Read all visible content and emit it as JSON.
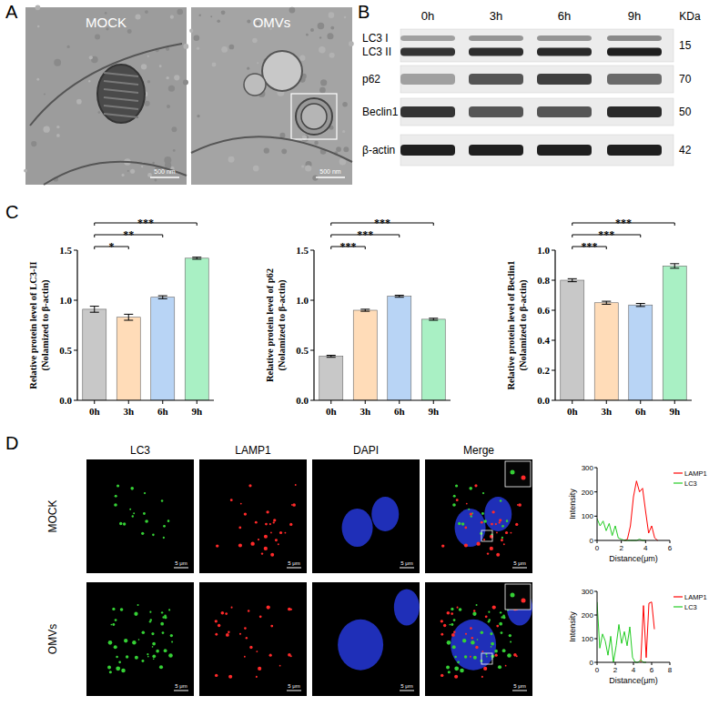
{
  "panels": {
    "A": {
      "letter": "A",
      "images": [
        {
          "label": "MOCK",
          "scale_bar": "500 nm"
        },
        {
          "label": "OMVs",
          "scale_bar": "500 nm"
        }
      ]
    },
    "B": {
      "letter": "B",
      "lanes": [
        "0h",
        "3h",
        "6h",
        "9h"
      ],
      "unit": "KDa",
      "rows": [
        {
          "labels": [
            "LC3 I",
            "LC3 II"
          ],
          "kda": "15"
        },
        {
          "labels": [
            "p62"
          ],
          "kda": "70"
        },
        {
          "labels": [
            "Beclin1"
          ],
          "kda": "50"
        },
        {
          "labels": [
            "β-actin"
          ],
          "kda": "42"
        }
      ]
    },
    "C": {
      "letter": "C"
    },
    "D": {
      "letter": "D",
      "columns": [
        "LC3",
        "LAMP1",
        "DAPI",
        "Merge"
      ],
      "rows": [
        "MOCK",
        "OMVs"
      ],
      "scale_bar": "5 μm"
    }
  },
  "chart_data": [
    {
      "type": "bar",
      "ylabel": "Relative protein level of LC3-II",
      "ylabel_note": "(Nolamized to β-actin)",
      "categories": [
        "0h",
        "3h",
        "6h",
        "9h"
      ],
      "values": [
        0.91,
        0.83,
        1.03,
        1.42
      ],
      "errors": [
        0.03,
        0.03,
        0.015,
        0.01
      ],
      "colors": [
        "#c8c8c8",
        "#ffdcb8",
        "#b8d4f5",
        "#a9f0c4"
      ],
      "ylim": [
        0,
        1.5
      ],
      "yticks": [
        {
          "value": 0,
          "label": "0.0"
        },
        0.5,
        {
          "value": 1,
          "label": "1.0"
        },
        1.5
      ],
      "annotations": [
        {
          "from": "0h",
          "to": "3h",
          "text": "*"
        },
        {
          "from": "0h",
          "to": "6h",
          "text": "**"
        },
        {
          "from": "0h",
          "to": "9h",
          "text": "***"
        }
      ]
    },
    {
      "type": "bar",
      "ylabel": "Relative protein level of p62",
      "ylabel_note": "(Nolamized to β-actin)",
      "categories": [
        "0h",
        "3h",
        "6h",
        "9h"
      ],
      "values": [
        0.44,
        0.9,
        1.04,
        0.81
      ],
      "errors": [
        0.01,
        0.01,
        0.01,
        0.01
      ],
      "colors": [
        "#c8c8c8",
        "#ffdcb8",
        "#b8d4f5",
        "#a9f0c4"
      ],
      "ylim": [
        0,
        1.5
      ],
      "yticks": [
        {
          "value": 0,
          "label": "0.0"
        },
        0.5,
        {
          "value": 1,
          "label": "1.0"
        },
        1.5
      ],
      "annotations": [
        {
          "from": "0h",
          "to": "3h",
          "text": "***"
        },
        {
          "from": "0h",
          "to": "6h",
          "text": "***"
        },
        {
          "from": "0h",
          "to": "9h",
          "text": "***"
        }
      ]
    },
    {
      "type": "bar",
      "ylabel": "Relative protein level of Beclin1",
      "ylabel_note": "(Nolamized to β-actin)",
      "categories": [
        "0h",
        "3h",
        "6h",
        "9h"
      ],
      "values": [
        0.8,
        0.65,
        0.635,
        0.895
      ],
      "errors": [
        0.01,
        0.01,
        0.01,
        0.015
      ],
      "colors": [
        "#c8c8c8",
        "#ffdcb8",
        "#b8d4f5",
        "#a9f0c4"
      ],
      "ylim": [
        0,
        1.0
      ],
      "yticks": [
        {
          "value": 0,
          "label": "0.0"
        },
        0.2,
        0.4,
        0.6,
        0.8,
        {
          "value": 1,
          "label": "1.0"
        }
      ],
      "annotations": [
        {
          "from": "0h",
          "to": "3h",
          "text": "***"
        },
        {
          "from": "0h",
          "to": "6h",
          "text": "***"
        },
        {
          "from": "0h",
          "to": "9h",
          "text": "***"
        }
      ]
    },
    {
      "type": "line",
      "xlabel": "Distance(μm)",
      "ylabel": "Intensity",
      "x": [
        0,
        0.25,
        0.5,
        0.75,
        1,
        1.25,
        1.5,
        1.75,
        2,
        2.25,
        2.5,
        2.75,
        3,
        3.25,
        3.5,
        3.75,
        4,
        4.25,
        4.5,
        4.75,
        5
      ],
      "series": [
        {
          "name": "LAMP1",
          "color": "#ff0000",
          "values": [
            null,
            null,
            null,
            null,
            null,
            null,
            null,
            null,
            null,
            0,
            5,
            60,
            180,
            245,
            200,
            215,
            120,
            30,
            60,
            10,
            0
          ]
        },
        {
          "name": "LC3",
          "color": "#22cc22",
          "values": [
            90,
            60,
            80,
            40,
            70,
            20,
            60,
            10,
            5,
            0,
            0,
            0,
            0,
            0,
            5,
            0,
            0,
            null,
            null,
            null,
            null
          ]
        }
      ],
      "xlim": [
        0,
        6
      ],
      "xticks": [
        0,
        2,
        4,
        6
      ],
      "ylim": [
        0,
        300
      ],
      "yticks": [
        0,
        100,
        200,
        300
      ],
      "legend": "right"
    },
    {
      "type": "line",
      "xlabel": "Distance(μm)",
      "ylabel": "Intensity",
      "x": [
        0,
        0.3,
        0.6,
        0.9,
        1.2,
        1.5,
        1.8,
        2.1,
        2.4,
        2.7,
        3,
        3.3,
        3.6,
        3.9,
        4.2,
        4.5,
        4.8,
        5.1,
        5.4,
        5.7,
        6,
        6.3
      ],
      "series": [
        {
          "name": "LAMP1",
          "color": "#ff0000",
          "values": [
            null,
            null,
            null,
            null,
            null,
            null,
            null,
            null,
            null,
            null,
            null,
            null,
            null,
            null,
            null,
            null,
            0,
            240,
            20,
            250,
            255,
            140
          ]
        },
        {
          "name": "LC3",
          "color": "#22cc22",
          "values": [
            255,
            60,
            120,
            90,
            30,
            110,
            0,
            70,
            160,
            80,
            130,
            70,
            150,
            20,
            0,
            0,
            10,
            0,
            0,
            null,
            null,
            null
          ]
        }
      ],
      "xlim": [
        0,
        8
      ],
      "xticks": [
        0,
        2,
        4,
        6,
        8
      ],
      "ylim": [
        0,
        300
      ],
      "yticks": [
        0,
        100,
        200,
        300
      ],
      "legend": "right"
    }
  ]
}
